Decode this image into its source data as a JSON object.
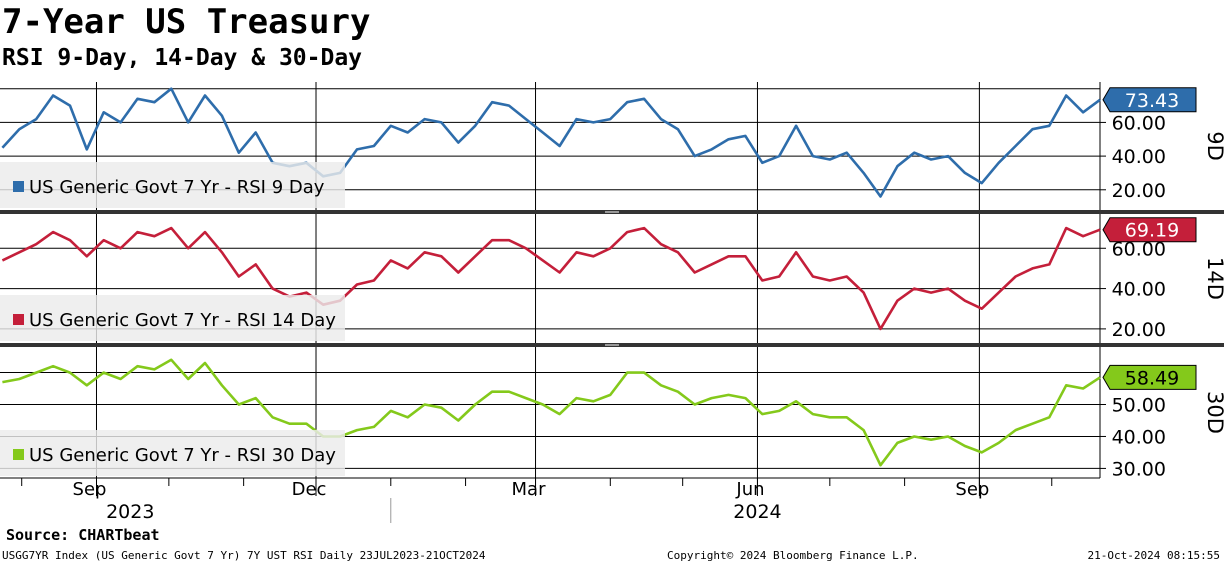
{
  "title": "7-Year US Treasury",
  "subtitle": "RSI 9-Day, 14-Day & 30-Day",
  "source": "Source: CHARTbeat",
  "footer": {
    "left": "USGG7YR Index (US Generic Govt 7 Yr) 7Y UST RSI  Daily 23JUL2023-21OCT2024",
    "center": "Copyright© 2024 Bloomberg Finance L.P.",
    "right": "21-Oct-2024 08:15:55"
  },
  "chart_data": {
    "type": "line",
    "x_axis": {
      "start": "2023-07-23",
      "end": "2024-10-21",
      "month_labels": [
        {
          "label": "Sep",
          "date": "2023-09-01"
        },
        {
          "label": "Dec",
          "date": "2023-12-01"
        },
        {
          "label": "Mar",
          "date": "2024-03-01"
        },
        {
          "label": "Jun",
          "date": "2024-06-01"
        },
        {
          "label": "Sep",
          "date": "2024-09-01"
        }
      ],
      "year_labels": [
        {
          "label": "2023",
          "date": "2023-09-15"
        },
        {
          "label": "2024",
          "date": "2024-06-01"
        }
      ],
      "year_divider": "2024-01-01"
    },
    "panels": [
      {
        "id": "9d",
        "panel_label": "9D",
        "legend": "US Generic Govt 7 Yr - RSI 9 Day",
        "color": "#2e6dab",
        "last_value": "73.43",
        "ylim": [
          8,
          84
        ],
        "ticks": [
          "20.00",
          "40.00",
          "60.00"
        ],
        "grid": [
          20,
          40,
          60,
          80
        ],
        "points": [
          [
            "2023-07-24",
            45
          ],
          [
            "2023-07-31",
            56
          ],
          [
            "2023-08-07",
            62
          ],
          [
            "2023-08-14",
            76
          ],
          [
            "2023-08-21",
            70
          ],
          [
            "2023-08-28",
            44
          ],
          [
            "2023-09-04",
            66
          ],
          [
            "2023-09-11",
            60
          ],
          [
            "2023-09-18",
            74
          ],
          [
            "2023-09-25",
            72
          ],
          [
            "2023-10-02",
            80
          ],
          [
            "2023-10-09",
            60
          ],
          [
            "2023-10-16",
            76
          ],
          [
            "2023-10-23",
            64
          ],
          [
            "2023-10-30",
            42
          ],
          [
            "2023-11-06",
            54
          ],
          [
            "2023-11-13",
            36
          ],
          [
            "2023-11-20",
            34
          ],
          [
            "2023-11-27",
            36
          ],
          [
            "2023-12-04",
            28
          ],
          [
            "2023-12-11",
            30
          ],
          [
            "2023-12-18",
            44
          ],
          [
            "2023-12-25",
            46
          ],
          [
            "2024-01-01",
            58
          ],
          [
            "2024-01-08",
            54
          ],
          [
            "2024-01-15",
            62
          ],
          [
            "2024-01-22",
            60
          ],
          [
            "2024-01-29",
            48
          ],
          [
            "2024-02-05",
            58
          ],
          [
            "2024-02-12",
            72
          ],
          [
            "2024-02-19",
            70
          ],
          [
            "2024-02-26",
            62
          ],
          [
            "2024-03-04",
            54
          ],
          [
            "2024-03-11",
            46
          ],
          [
            "2024-03-18",
            62
          ],
          [
            "2024-03-25",
            60
          ],
          [
            "2024-04-01",
            62
          ],
          [
            "2024-04-08",
            72
          ],
          [
            "2024-04-15",
            74
          ],
          [
            "2024-04-22",
            62
          ],
          [
            "2024-04-29",
            56
          ],
          [
            "2024-05-06",
            40
          ],
          [
            "2024-05-13",
            44
          ],
          [
            "2024-05-20",
            50
          ],
          [
            "2024-05-27",
            52
          ],
          [
            "2024-06-03",
            36
          ],
          [
            "2024-06-10",
            40
          ],
          [
            "2024-06-17",
            58
          ],
          [
            "2024-06-24",
            40
          ],
          [
            "2024-07-01",
            38
          ],
          [
            "2024-07-08",
            42
          ],
          [
            "2024-07-15",
            30
          ],
          [
            "2024-07-22",
            16
          ],
          [
            "2024-07-29",
            34
          ],
          [
            "2024-08-05",
            42
          ],
          [
            "2024-08-12",
            38
          ],
          [
            "2024-08-19",
            40
          ],
          [
            "2024-08-26",
            30
          ],
          [
            "2024-09-02",
            24
          ],
          [
            "2024-09-09",
            36
          ],
          [
            "2024-09-16",
            46
          ],
          [
            "2024-09-23",
            56
          ],
          [
            "2024-09-30",
            58
          ],
          [
            "2024-10-07",
            76
          ],
          [
            "2024-10-14",
            66
          ],
          [
            "2024-10-21",
            73.43
          ]
        ]
      },
      {
        "id": "14d",
        "panel_label": "14D",
        "legend": "US Generic Govt 7 Yr - RSI 14 Day",
        "color": "#c41f3a",
        "last_value": "69.19",
        "ylim": [
          13,
          77
        ],
        "ticks": [
          "20.00",
          "40.00",
          "60.00"
        ],
        "grid": [
          20,
          40,
          60
        ],
        "points": [
          [
            "2023-07-24",
            54
          ],
          [
            "2023-07-31",
            58
          ],
          [
            "2023-08-07",
            62
          ],
          [
            "2023-08-14",
            68
          ],
          [
            "2023-08-21",
            64
          ],
          [
            "2023-08-28",
            56
          ],
          [
            "2023-09-04",
            64
          ],
          [
            "2023-09-11",
            60
          ],
          [
            "2023-09-18",
            68
          ],
          [
            "2023-09-25",
            66
          ],
          [
            "2023-10-02",
            70
          ],
          [
            "2023-10-09",
            60
          ],
          [
            "2023-10-16",
            68
          ],
          [
            "2023-10-23",
            58
          ],
          [
            "2023-10-30",
            46
          ],
          [
            "2023-11-06",
            52
          ],
          [
            "2023-11-13",
            40
          ],
          [
            "2023-11-20",
            36
          ],
          [
            "2023-11-27",
            38
          ],
          [
            "2023-12-04",
            32
          ],
          [
            "2023-12-11",
            34
          ],
          [
            "2023-12-18",
            42
          ],
          [
            "2023-12-25",
            44
          ],
          [
            "2024-01-01",
            54
          ],
          [
            "2024-01-08",
            50
          ],
          [
            "2024-01-15",
            58
          ],
          [
            "2024-01-22",
            56
          ],
          [
            "2024-01-29",
            48
          ],
          [
            "2024-02-05",
            56
          ],
          [
            "2024-02-12",
            64
          ],
          [
            "2024-02-19",
            64
          ],
          [
            "2024-02-26",
            60
          ],
          [
            "2024-03-04",
            54
          ],
          [
            "2024-03-11",
            48
          ],
          [
            "2024-03-18",
            58
          ],
          [
            "2024-03-25",
            56
          ],
          [
            "2024-04-01",
            60
          ],
          [
            "2024-04-08",
            68
          ],
          [
            "2024-04-15",
            70
          ],
          [
            "2024-04-22",
            62
          ],
          [
            "2024-04-29",
            58
          ],
          [
            "2024-05-06",
            48
          ],
          [
            "2024-05-13",
            52
          ],
          [
            "2024-05-20",
            56
          ],
          [
            "2024-05-27",
            56
          ],
          [
            "2024-06-03",
            44
          ],
          [
            "2024-06-10",
            46
          ],
          [
            "2024-06-17",
            58
          ],
          [
            "2024-06-24",
            46
          ],
          [
            "2024-07-01",
            44
          ],
          [
            "2024-07-08",
            46
          ],
          [
            "2024-07-15",
            38
          ],
          [
            "2024-07-22",
            20
          ],
          [
            "2024-07-29",
            34
          ],
          [
            "2024-08-05",
            40
          ],
          [
            "2024-08-12",
            38
          ],
          [
            "2024-08-19",
            40
          ],
          [
            "2024-08-26",
            34
          ],
          [
            "2024-09-02",
            30
          ],
          [
            "2024-09-09",
            38
          ],
          [
            "2024-09-16",
            46
          ],
          [
            "2024-09-23",
            50
          ],
          [
            "2024-09-30",
            52
          ],
          [
            "2024-10-07",
            70
          ],
          [
            "2024-10-14",
            66
          ],
          [
            "2024-10-21",
            69.19
          ]
        ]
      },
      {
        "id": "30d",
        "panel_label": "30D",
        "legend": "US Generic Govt 7 Yr - RSI 30 Day",
        "color": "#84c91b",
        "last_value": "58.49",
        "ylim": [
          27,
          68
        ],
        "ticks": [
          "30.00",
          "40.00",
          "50.00"
        ],
        "grid": [
          30,
          40,
          50,
          60
        ],
        "points": [
          [
            "2023-07-24",
            57
          ],
          [
            "2023-07-31",
            58
          ],
          [
            "2023-08-07",
            60
          ],
          [
            "2023-08-14",
            62
          ],
          [
            "2023-08-21",
            60
          ],
          [
            "2023-08-28",
            56
          ],
          [
            "2023-09-04",
            60
          ],
          [
            "2023-09-11",
            58
          ],
          [
            "2023-09-18",
            62
          ],
          [
            "2023-09-25",
            61
          ],
          [
            "2023-10-02",
            64
          ],
          [
            "2023-10-09",
            58
          ],
          [
            "2023-10-16",
            63
          ],
          [
            "2023-10-23",
            56
          ],
          [
            "2023-10-30",
            50
          ],
          [
            "2023-11-06",
            52
          ],
          [
            "2023-11-13",
            46
          ],
          [
            "2023-11-20",
            44
          ],
          [
            "2023-11-27",
            44
          ],
          [
            "2023-12-04",
            40
          ],
          [
            "2023-12-11",
            40
          ],
          [
            "2023-12-18",
            42
          ],
          [
            "2023-12-25",
            43
          ],
          [
            "2024-01-01",
            48
          ],
          [
            "2024-01-08",
            46
          ],
          [
            "2024-01-15",
            50
          ],
          [
            "2024-01-22",
            49
          ],
          [
            "2024-01-29",
            45
          ],
          [
            "2024-02-05",
            50
          ],
          [
            "2024-02-12",
            54
          ],
          [
            "2024-02-19",
            54
          ],
          [
            "2024-02-26",
            52
          ],
          [
            "2024-03-04",
            50
          ],
          [
            "2024-03-11",
            47
          ],
          [
            "2024-03-18",
            52
          ],
          [
            "2024-03-25",
            51
          ],
          [
            "2024-04-01",
            53
          ],
          [
            "2024-04-08",
            60
          ],
          [
            "2024-04-15",
            60
          ],
          [
            "2024-04-22",
            56
          ],
          [
            "2024-04-29",
            54
          ],
          [
            "2024-05-06",
            50
          ],
          [
            "2024-05-13",
            52
          ],
          [
            "2024-05-20",
            53
          ],
          [
            "2024-05-27",
            52
          ],
          [
            "2024-06-03",
            47
          ],
          [
            "2024-06-10",
            48
          ],
          [
            "2024-06-17",
            51
          ],
          [
            "2024-06-24",
            47
          ],
          [
            "2024-07-01",
            46
          ],
          [
            "2024-07-08",
            46
          ],
          [
            "2024-07-15",
            42
          ],
          [
            "2024-07-22",
            31
          ],
          [
            "2024-07-29",
            38
          ],
          [
            "2024-08-05",
            40
          ],
          [
            "2024-08-12",
            39
          ],
          [
            "2024-08-19",
            40
          ],
          [
            "2024-08-26",
            37
          ],
          [
            "2024-09-02",
            35
          ],
          [
            "2024-09-09",
            38
          ],
          [
            "2024-09-16",
            42
          ],
          [
            "2024-09-23",
            44
          ],
          [
            "2024-09-30",
            46
          ],
          [
            "2024-10-07",
            56
          ],
          [
            "2024-10-14",
            55
          ],
          [
            "2024-10-21",
            58.49
          ]
        ]
      }
    ]
  }
}
